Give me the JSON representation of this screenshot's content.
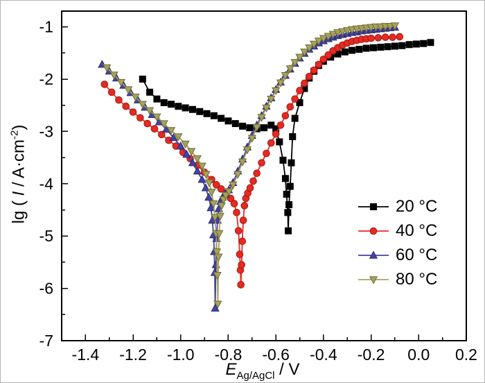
{
  "figure": {
    "background": "#ffffff",
    "frame_color": "#b3b3b3"
  },
  "axis_titles": {
    "y_prefix": "lg ( ",
    "y_italic": "I",
    "y_mid": " / A·cm",
    "y_sup": "-2",
    "y_suffix": ")",
    "x_italic": "E",
    "x_sub": "Ag/AgCl",
    "x_suffix": " / V"
  },
  "chart_data": {
    "type": "line",
    "title": "",
    "xlabel": "E_Ag/AgCl / V",
    "ylabel": "lg ( I / A·cm^-2 )",
    "xlim": [
      -1.5,
      0.2
    ],
    "ylim": [
      -7,
      -0.7
    ],
    "grid": false,
    "legend_position": "inside-right-center",
    "x_ticks": [
      -1.4,
      -1.2,
      -1.0,
      -0.8,
      -0.6,
      -0.4,
      -0.2,
      0.0,
      0.2
    ],
    "x_tick_labels": [
      "-1.4",
      "-1.2",
      "-1.0",
      "-0.8",
      "-0.6",
      "-0.4",
      "-0.2",
      "0.0",
      "0.2"
    ],
    "x_minor_ticks": [
      -1.3,
      -1.1,
      -0.9,
      -0.7,
      -0.5,
      -0.3,
      -0.1,
      0.1
    ],
    "y_ticks": [
      -7,
      -6,
      -5,
      -4,
      -3,
      -2,
      -1
    ],
    "y_tick_labels": [
      "-7",
      "-6",
      "-5",
      "-4",
      "-3",
      "-2",
      "-1"
    ],
    "y_minor_ticks": [
      -6.5,
      -5.5,
      -4.5,
      -3.5,
      -2.5,
      -1.5
    ],
    "series": [
      {
        "name": "20 °C",
        "color": "#000000",
        "edge": "#000000",
        "marker": "square",
        "corrosion_potential_V": -0.55,
        "points": [
          [
            -1.16,
            -2.0
          ],
          [
            -1.13,
            -2.25
          ],
          [
            -1.1,
            -2.38
          ],
          [
            -1.07,
            -2.45
          ],
          [
            -1.04,
            -2.48
          ],
          [
            -1.01,
            -2.52
          ],
          [
            -0.98,
            -2.55
          ],
          [
            -0.95,
            -2.58
          ],
          [
            -0.92,
            -2.62
          ],
          [
            -0.89,
            -2.66
          ],
          [
            -0.86,
            -2.7
          ],
          [
            -0.83,
            -2.75
          ],
          [
            -0.8,
            -2.8
          ],
          [
            -0.77,
            -2.85
          ],
          [
            -0.74,
            -2.9
          ],
          [
            -0.71,
            -2.93
          ],
          [
            -0.68,
            -2.95
          ],
          [
            -0.65,
            -2.93
          ],
          [
            -0.62,
            -2.88
          ],
          [
            -0.6,
            -2.95
          ],
          [
            -0.585,
            -3.2
          ],
          [
            -0.57,
            -3.55
          ],
          [
            -0.56,
            -3.9
          ],
          [
            -0.555,
            -4.2
          ],
          [
            -0.55,
            -4.55
          ],
          [
            -0.548,
            -4.9
          ],
          [
            -0.545,
            -4.4
          ],
          [
            -0.54,
            -4.05
          ],
          [
            -0.535,
            -3.6
          ],
          [
            -0.53,
            -3.1
          ],
          [
            -0.52,
            -2.75
          ],
          [
            -0.5,
            -2.45
          ],
          [
            -0.48,
            -2.18
          ],
          [
            -0.46,
            -1.98
          ],
          [
            -0.44,
            -1.85
          ],
          [
            -0.42,
            -1.74
          ],
          [
            -0.4,
            -1.66
          ],
          [
            -0.37,
            -1.58
          ],
          [
            -0.34,
            -1.52
          ],
          [
            -0.31,
            -1.48
          ],
          [
            -0.28,
            -1.45
          ],
          [
            -0.25,
            -1.43
          ],
          [
            -0.22,
            -1.41
          ],
          [
            -0.19,
            -1.4
          ],
          [
            -0.16,
            -1.39
          ],
          [
            -0.13,
            -1.38
          ],
          [
            -0.1,
            -1.37
          ],
          [
            -0.07,
            -1.36
          ],
          [
            -0.04,
            -1.34
          ],
          [
            -0.01,
            -1.33
          ],
          [
            0.02,
            -1.32
          ],
          [
            0.05,
            -1.3
          ]
        ]
      },
      {
        "name": "40 °C",
        "color": "#e62a22",
        "edge": "#a31710",
        "marker": "circle",
        "corrosion_potential_V": -0.75,
        "points": [
          [
            -1.32,
            -2.1
          ],
          [
            -1.29,
            -2.25
          ],
          [
            -1.26,
            -2.4
          ],
          [
            -1.23,
            -2.52
          ],
          [
            -1.2,
            -2.63
          ],
          [
            -1.17,
            -2.74
          ],
          [
            -1.14,
            -2.85
          ],
          [
            -1.11,
            -2.95
          ],
          [
            -1.08,
            -3.06
          ],
          [
            -1.05,
            -3.17
          ],
          [
            -1.02,
            -3.28
          ],
          [
            -0.99,
            -3.4
          ],
          [
            -0.96,
            -3.52
          ],
          [
            -0.93,
            -3.65
          ],
          [
            -0.9,
            -3.78
          ],
          [
            -0.87,
            -3.92
          ],
          [
            -0.85,
            -4.02
          ],
          [
            -0.83,
            -4.1
          ],
          [
            -0.81,
            -4.18
          ],
          [
            -0.79,
            -4.28
          ],
          [
            -0.775,
            -4.38
          ],
          [
            -0.765,
            -4.55
          ],
          [
            -0.757,
            -4.9
          ],
          [
            -0.752,
            -5.35
          ],
          [
            -0.749,
            -5.65
          ],
          [
            -0.747,
            -5.93
          ],
          [
            -0.744,
            -5.55
          ],
          [
            -0.741,
            -5.1
          ],
          [
            -0.737,
            -4.7
          ],
          [
            -0.732,
            -4.42
          ],
          [
            -0.726,
            -4.28
          ],
          [
            -0.718,
            -4.18
          ],
          [
            -0.708,
            -4.08
          ],
          [
            -0.695,
            -3.95
          ],
          [
            -0.68,
            -3.8
          ],
          [
            -0.66,
            -3.6
          ],
          [
            -0.64,
            -3.42
          ],
          [
            -0.62,
            -3.22
          ],
          [
            -0.6,
            -3.05
          ],
          [
            -0.58,
            -2.88
          ],
          [
            -0.56,
            -2.7
          ],
          [
            -0.54,
            -2.53
          ],
          [
            -0.52,
            -2.38
          ],
          [
            -0.5,
            -2.22
          ],
          [
            -0.48,
            -2.08
          ],
          [
            -0.46,
            -1.95
          ],
          [
            -0.44,
            -1.83
          ],
          [
            -0.42,
            -1.72
          ],
          [
            -0.4,
            -1.62
          ],
          [
            -0.38,
            -1.54
          ],
          [
            -0.36,
            -1.46
          ],
          [
            -0.34,
            -1.4
          ],
          [
            -0.32,
            -1.35
          ],
          [
            -0.3,
            -1.31
          ],
          [
            -0.28,
            -1.28
          ],
          [
            -0.26,
            -1.26
          ],
          [
            -0.24,
            -1.24
          ],
          [
            -0.22,
            -1.23
          ],
          [
            -0.2,
            -1.22
          ],
          [
            -0.17,
            -1.21
          ],
          [
            -0.14,
            -1.2
          ],
          [
            -0.11,
            -1.2
          ],
          [
            -0.08,
            -1.19
          ]
        ]
      },
      {
        "name": "60 °C",
        "color": "#4343a6",
        "edge": "#2b2b6e",
        "marker": "triangle-up",
        "corrosion_potential_V": -0.855,
        "points": [
          [
            -1.33,
            -1.72
          ],
          [
            -1.3,
            -1.85
          ],
          [
            -1.27,
            -1.98
          ],
          [
            -1.24,
            -2.12
          ],
          [
            -1.21,
            -2.26
          ],
          [
            -1.18,
            -2.4
          ],
          [
            -1.15,
            -2.54
          ],
          [
            -1.12,
            -2.68
          ],
          [
            -1.09,
            -2.82
          ],
          [
            -1.06,
            -2.96
          ],
          [
            -1.03,
            -3.12
          ],
          [
            -1.0,
            -3.28
          ],
          [
            -0.975,
            -3.44
          ],
          [
            -0.95,
            -3.6
          ],
          [
            -0.93,
            -3.76
          ],
          [
            -0.91,
            -3.92
          ],
          [
            -0.895,
            -4.08
          ],
          [
            -0.882,
            -4.26
          ],
          [
            -0.873,
            -4.46
          ],
          [
            -0.867,
            -4.7
          ],
          [
            -0.862,
            -4.98
          ],
          [
            -0.859,
            -5.3
          ],
          [
            -0.857,
            -5.7
          ],
          [
            -0.855,
            -6.38
          ],
          [
            -0.852,
            -5.55
          ],
          [
            -0.849,
            -5.05
          ],
          [
            -0.845,
            -4.7
          ],
          [
            -0.84,
            -4.48
          ],
          [
            -0.833,
            -4.34
          ],
          [
            -0.824,
            -4.26
          ],
          [
            -0.812,
            -4.2
          ],
          [
            -0.798,
            -4.12
          ],
          [
            -0.78,
            -3.98
          ],
          [
            -0.76,
            -3.76
          ],
          [
            -0.74,
            -3.53
          ],
          [
            -0.72,
            -3.3
          ],
          [
            -0.7,
            -3.08
          ],
          [
            -0.68,
            -2.88
          ],
          [
            -0.66,
            -2.7
          ],
          [
            -0.64,
            -2.52
          ],
          [
            -0.62,
            -2.36
          ],
          [
            -0.6,
            -2.2
          ],
          [
            -0.58,
            -2.06
          ],
          [
            -0.56,
            -1.93
          ],
          [
            -0.54,
            -1.81
          ],
          [
            -0.52,
            -1.7
          ],
          [
            -0.5,
            -1.6
          ],
          [
            -0.48,
            -1.51
          ],
          [
            -0.46,
            -1.43
          ],
          [
            -0.44,
            -1.37
          ],
          [
            -0.42,
            -1.31
          ],
          [
            -0.4,
            -1.27
          ],
          [
            -0.38,
            -1.23
          ],
          [
            -0.36,
            -1.2
          ],
          [
            -0.34,
            -1.17
          ],
          [
            -0.32,
            -1.15
          ],
          [
            -0.3,
            -1.13
          ],
          [
            -0.28,
            -1.11
          ],
          [
            -0.26,
            -1.1
          ],
          [
            -0.24,
            -1.08
          ],
          [
            -0.22,
            -1.07
          ],
          [
            -0.2,
            -1.06
          ],
          [
            -0.18,
            -1.05
          ],
          [
            -0.16,
            -1.04
          ],
          [
            -0.14,
            -1.03
          ],
          [
            -0.12,
            -1.02
          ],
          [
            -0.1,
            -1.01
          ]
        ]
      },
      {
        "name": "80 °C",
        "color": "#a6a25c",
        "edge": "#6f6c35",
        "marker": "triangle-down",
        "corrosion_potential_V": -0.845,
        "points": [
          [
            -1.31,
            -1.78
          ],
          [
            -1.28,
            -1.92
          ],
          [
            -1.25,
            -2.06
          ],
          [
            -1.22,
            -2.2
          ],
          [
            -1.19,
            -2.34
          ],
          [
            -1.16,
            -2.48
          ],
          [
            -1.13,
            -2.6
          ],
          [
            -1.1,
            -2.72
          ],
          [
            -1.07,
            -2.85
          ],
          [
            -1.04,
            -2.98
          ],
          [
            -1.01,
            -3.1
          ],
          [
            -0.98,
            -3.24
          ],
          [
            -0.955,
            -3.38
          ],
          [
            -0.93,
            -3.52
          ],
          [
            -0.91,
            -3.66
          ],
          [
            -0.893,
            -3.82
          ],
          [
            -0.88,
            -3.98
          ],
          [
            -0.87,
            -4.16
          ],
          [
            -0.862,
            -4.38
          ],
          [
            -0.856,
            -4.64
          ],
          [
            -0.851,
            -4.95
          ],
          [
            -0.848,
            -5.3
          ],
          [
            -0.846,
            -5.75
          ],
          [
            -0.844,
            -6.3
          ],
          [
            -0.841,
            -5.4
          ],
          [
            -0.838,
            -4.95
          ],
          [
            -0.834,
            -4.62
          ],
          [
            -0.828,
            -4.42
          ],
          [
            -0.82,
            -4.3
          ],
          [
            -0.81,
            -4.22
          ],
          [
            -0.797,
            -4.15
          ],
          [
            -0.78,
            -4.02
          ],
          [
            -0.76,
            -3.82
          ],
          [
            -0.74,
            -3.58
          ],
          [
            -0.72,
            -3.35
          ],
          [
            -0.7,
            -3.13
          ],
          [
            -0.68,
            -2.92
          ],
          [
            -0.66,
            -2.73
          ],
          [
            -0.64,
            -2.55
          ],
          [
            -0.62,
            -2.38
          ],
          [
            -0.6,
            -2.22
          ],
          [
            -0.58,
            -2.07
          ],
          [
            -0.56,
            -1.93
          ],
          [
            -0.54,
            -1.8
          ],
          [
            -0.52,
            -1.68
          ],
          [
            -0.5,
            -1.58
          ],
          [
            -0.48,
            -1.48
          ],
          [
            -0.46,
            -1.4
          ],
          [
            -0.44,
            -1.33
          ],
          [
            -0.42,
            -1.27
          ],
          [
            -0.4,
            -1.22
          ],
          [
            -0.38,
            -1.18
          ],
          [
            -0.36,
            -1.14
          ],
          [
            -0.34,
            -1.11
          ],
          [
            -0.32,
            -1.09
          ],
          [
            -0.3,
            -1.07
          ],
          [
            -0.28,
            -1.05
          ],
          [
            -0.26,
            -1.04
          ],
          [
            -0.24,
            -1.03
          ],
          [
            -0.22,
            -1.02
          ],
          [
            -0.2,
            -1.01
          ],
          [
            -0.18,
            -1.0
          ],
          [
            -0.16,
            -1.0
          ],
          [
            -0.14,
            -0.99
          ],
          [
            -0.12,
            -0.99
          ],
          [
            -0.1,
            -0.98
          ]
        ]
      }
    ]
  }
}
